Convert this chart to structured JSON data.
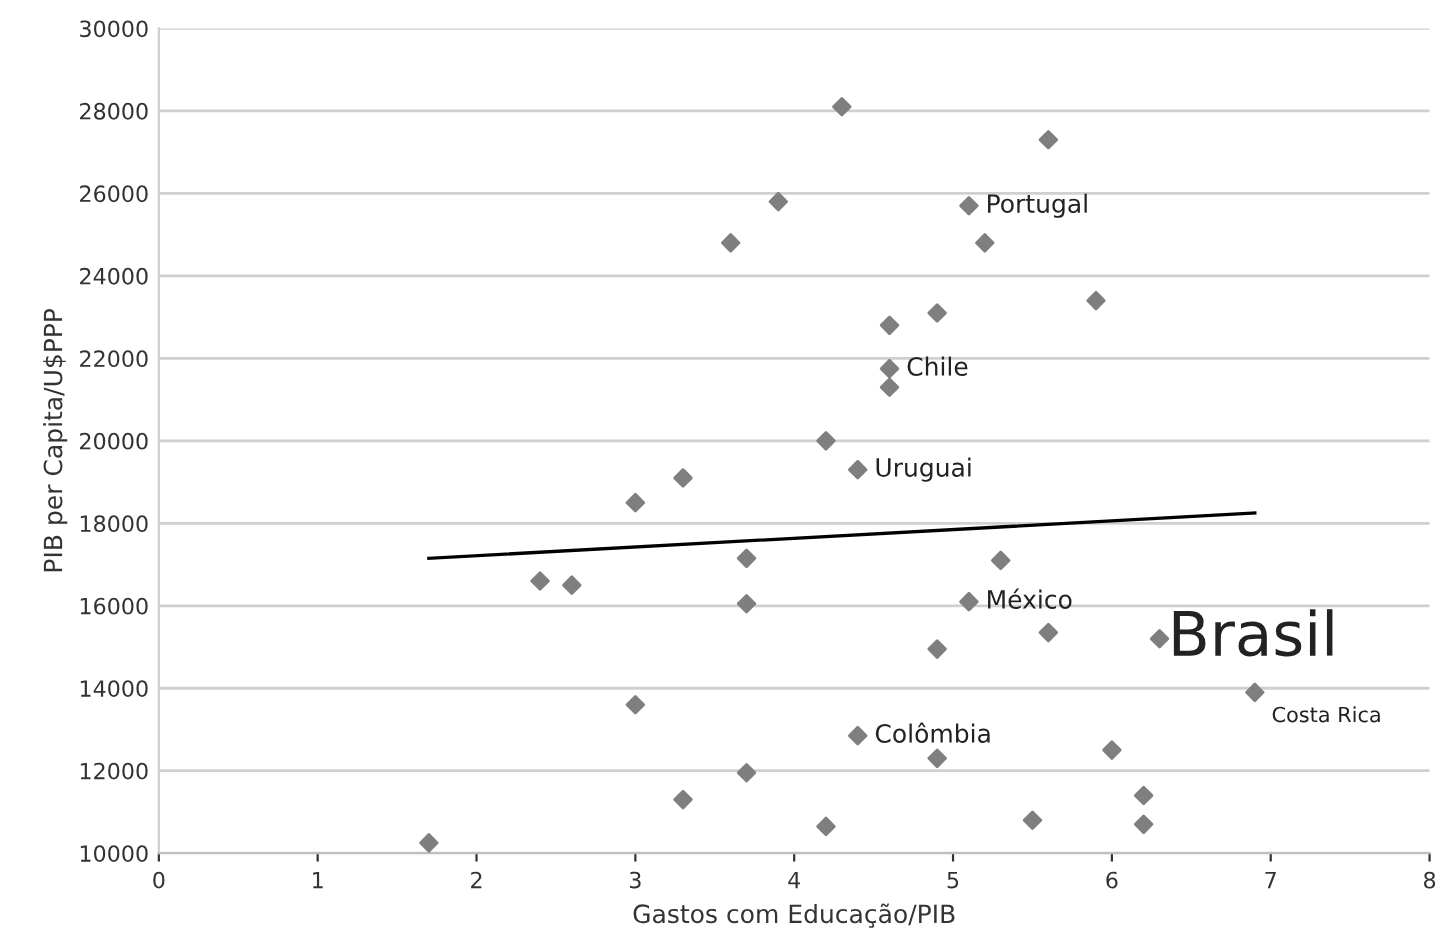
{
  "chart_data": {
    "type": "scatter",
    "xlabel": "Gastos com Educação/PIB",
    "ylabel": "PIB per Capita/U$PPP",
    "xlim": [
      0,
      8
    ],
    "ylim": [
      10000,
      30000
    ],
    "xticks": [
      0,
      1,
      2,
      3,
      4,
      5,
      6,
      7,
      8
    ],
    "yticks": [
      10000,
      12000,
      14000,
      16000,
      18000,
      20000,
      22000,
      24000,
      26000,
      28000,
      30000
    ],
    "grid": "y",
    "series": [
      {
        "color": "#7f7f7f",
        "marker": "diamond",
        "x": [
          1.7,
          2.4,
          2.6,
          3.0,
          3.0,
          3.3,
          3.3,
          3.6,
          3.7,
          3.7,
          3.7,
          3.9,
          4.2,
          4.2,
          4.3,
          4.4,
          4.4,
          4.6,
          4.6,
          4.6,
          4.9,
          4.9,
          4.9,
          5.1,
          5.1,
          5.2,
          5.3,
          5.5,
          5.6,
          5.6,
          5.9,
          6.0,
          6.2,
          6.2,
          6.3,
          6.9
        ],
        "values": [
          10250,
          16600,
          16500,
          18500,
          13600,
          19100,
          11300,
          24800,
          17150,
          16050,
          11950,
          25800,
          20000,
          10650,
          28100,
          19300,
          12850,
          22800,
          21750,
          21300,
          23100,
          14950,
          12300,
          25700,
          16100,
          24800,
          17100,
          10800,
          27300,
          15350,
          23400,
          12500,
          11400,
          10700,
          15200,
          13900
        ]
      },
      {
        "type": "line",
        "marker": "none",
        "color": "#000000",
        "x": [
          1.7,
          6.9
        ],
        "values": [
          17150,
          18250
        ]
      }
    ],
    "annotations": [
      {
        "text": "Portugal",
        "x": 5.1,
        "y": 25700
      },
      {
        "text": "Chile",
        "x": 4.6,
        "y": 21750
      },
      {
        "text": "Uruguai",
        "x": 4.4,
        "y": 19300
      },
      {
        "text": "México",
        "x": 5.1,
        "y": 16100
      },
      {
        "text": "Brasil",
        "x": 6.3,
        "y": 15200
      },
      {
        "text": "Costa Rica",
        "x": 6.9,
        "y": 13900
      },
      {
        "text": "Colômbia",
        "x": 4.4,
        "y": 12850
      }
    ]
  }
}
